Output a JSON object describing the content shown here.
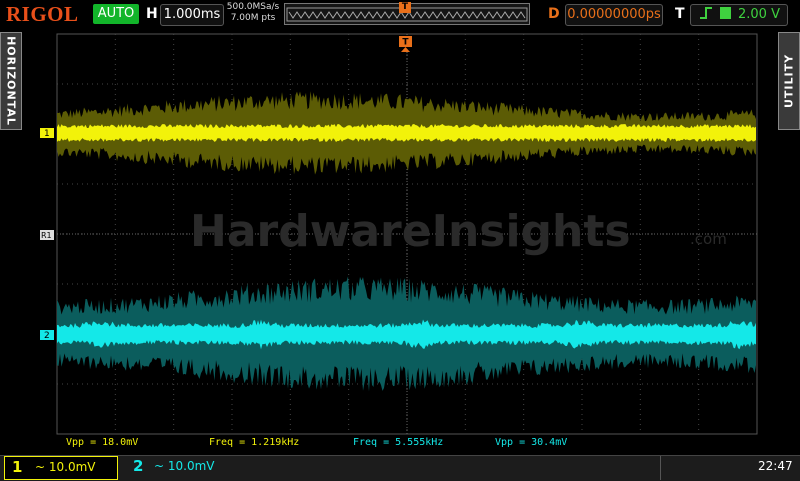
{
  "header": {
    "brand": "RIGOL",
    "mode": "AUTO",
    "h_label": "H",
    "timebase": "1.000ms",
    "sample_rate": "500.0MSa/s",
    "memory_depth": "7.00M pts",
    "d_label": "D",
    "delay": "0.00000000ps",
    "t_label": "T",
    "trigger_level": "2.00 V"
  },
  "side_tabs": {
    "left": "HORIZONTAL",
    "right": "UTILITY"
  },
  "markers": {
    "trigger": "T",
    "channel1": "1",
    "reference": "R1",
    "channel2": "2"
  },
  "watermark": {
    "text": "HardwareInsights",
    "suffix": ".com"
  },
  "measurements": [
    "Vpp = 18.0mV",
    "Freq = 1.219kHz",
    "Freq = 5.555kHz",
    "Vpp = 30.4mV"
  ],
  "footer": {
    "ch1_number": "1",
    "ch1_scale": "~ 10.0mV",
    "ch2_number": "2",
    "ch2_scale": "~ 10.0mV",
    "time": "22:47"
  }
}
